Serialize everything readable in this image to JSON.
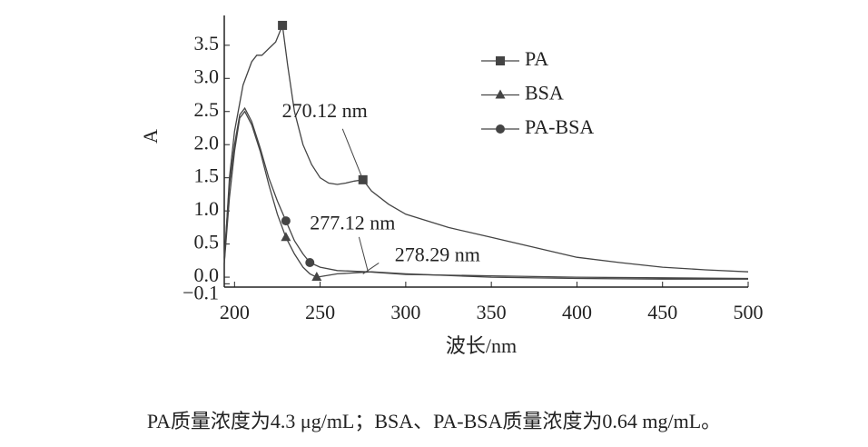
{
  "chart_data": {
    "type": "line",
    "x_label": "波长/nm",
    "y_label": "A",
    "xlim": [
      194,
      500
    ],
    "xticks": [
      200,
      250,
      300,
      350,
      400,
      450,
      500
    ],
    "ylim": [
      -0.15,
      3.95
    ],
    "yticks": [
      {
        "value": -0.1,
        "label": "−0.1"
      },
      {
        "value": 0,
        "label": "0.0"
      },
      {
        "value": 0.5,
        "label": "0.5"
      },
      {
        "value": 1,
        "label": "1.0"
      },
      {
        "value": 1.5,
        "label": "1.5"
      },
      {
        "value": 2,
        "label": "2.0"
      },
      {
        "value": 2.5,
        "label": "2.5"
      },
      {
        "value": 3,
        "label": "3.0"
      },
      {
        "value": 3.5,
        "label": "3.5"
      }
    ],
    "legend": "upper right",
    "series": [
      {
        "name": "PA",
        "color": "#444",
        "marker": "square",
        "x": [
          194,
          197,
          200,
          205,
          210,
          213,
          216,
          220,
          224,
          228,
          231,
          235,
          240,
          245,
          250,
          255,
          260,
          265,
          270,
          275,
          280,
          290,
          300,
          325,
          350,
          375,
          400,
          425,
          450,
          475,
          500
        ],
        "values": [
          0.2,
          1.5,
          2.2,
          2.9,
          3.25,
          3.35,
          3.35,
          3.45,
          3.55,
          3.8,
          3.2,
          2.5,
          2.0,
          1.7,
          1.5,
          1.42,
          1.4,
          1.42,
          1.45,
          1.47,
          1.3,
          1.1,
          0.95,
          0.75,
          0.6,
          0.45,
          0.3,
          0.22,
          0.15,
          0.11,
          0.08
        ],
        "marker_points": [
          9,
          19
        ]
      },
      {
        "name": "BSA",
        "color": "#444",
        "marker": "triangle",
        "x": [
          194,
          197,
          200,
          203,
          206,
          210,
          215,
          220,
          225,
          230,
          235,
          240,
          244,
          248,
          260,
          280,
          300,
          350,
          400,
          450,
          500
        ],
        "values": [
          0.2,
          1.2,
          1.9,
          2.4,
          2.5,
          2.3,
          1.9,
          1.4,
          0.95,
          0.6,
          0.35,
          0.15,
          0.05,
          0.0,
          0.05,
          0.08,
          0.05,
          0.0,
          -0.02,
          -0.03,
          -0.03
        ],
        "marker_points": [
          9,
          13
        ]
      },
      {
        "name": "PA-BSA",
        "color": "#444",
        "marker": "circle",
        "x": [
          194,
          197,
          200,
          203,
          206,
          210,
          215,
          220,
          225,
          230,
          235,
          240,
          244,
          250,
          260,
          278,
          300,
          350,
          400,
          450,
          500
        ],
        "values": [
          0.3,
          1.4,
          2.0,
          2.45,
          2.55,
          2.35,
          1.95,
          1.5,
          1.15,
          0.85,
          0.55,
          0.35,
          0.22,
          0.15,
          0.1,
          0.08,
          0.04,
          0.02,
          0.0,
          -0.01,
          -0.02
        ],
        "marker_points": [
          9,
          12
        ]
      }
    ],
    "annotations": [
      {
        "text": "270.12 nm",
        "x": 275,
        "y": 1.47
      },
      {
        "text": "277.12 nm",
        "x": 278,
        "y": 0.08
      },
      {
        "text": "278.29 nm",
        "x": 275,
        "y": 0.05
      }
    ],
    "caption": "PA质量浓度为4.3 μg/mL；BSA、PA-BSA质量浓度为0.64 mg/mL。"
  }
}
